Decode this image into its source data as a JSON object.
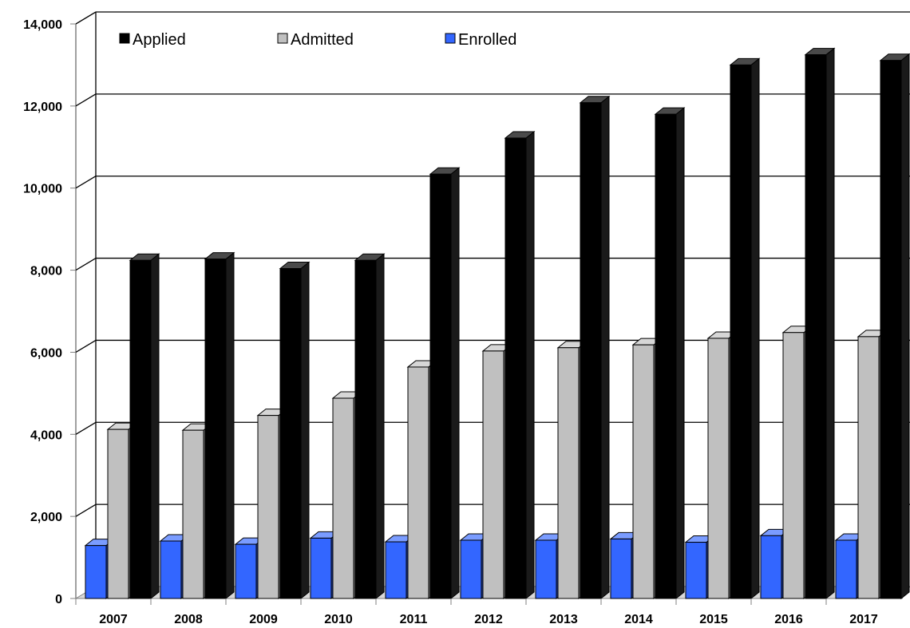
{
  "chart_data": {
    "type": "bar",
    "categories": [
      "2007",
      "2008",
      "2009",
      "2010",
      "2011",
      "2012",
      "2013",
      "2014",
      "2015",
      "2016",
      "2017"
    ],
    "series": [
      {
        "name": "Enrolled",
        "color": "#3366ff",
        "values": [
          1290,
          1400,
          1320,
          1470,
          1380,
          1420,
          1420,
          1450,
          1370,
          1530,
          1420
        ]
      },
      {
        "name": "Admitted",
        "color": "#c0c0c0",
        "values": [
          4120,
          4100,
          4460,
          4880,
          5640,
          6030,
          6110,
          6180,
          6340,
          6480,
          6380
        ]
      },
      {
        "name": "Applied",
        "color": "#000000",
        "values": [
          8240,
          8270,
          8040,
          8240,
          10340,
          11220,
          12080,
          11800,
          13000,
          13250,
          13110
        ]
      }
    ],
    "legend_order": [
      "Applied",
      "Admitted",
      "Enrolled"
    ],
    "yticks": [
      "0",
      "2,000",
      "4,000",
      "6,000",
      "8,000",
      "10,000",
      "12,000",
      "14,000"
    ],
    "ylim": [
      0,
      14000
    ],
    "legend_position": "top",
    "grid": true
  }
}
